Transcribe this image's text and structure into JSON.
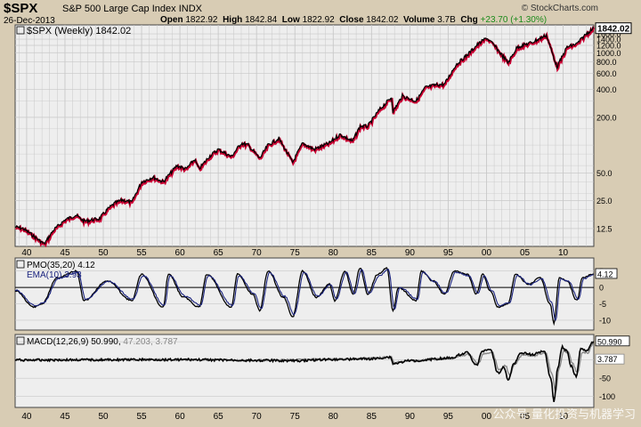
{
  "header": {
    "ticker": "$SPX",
    "name": "S&P 500 Large Cap Index",
    "exchange": "INDX",
    "date": "26-Dec-2013",
    "open_label": "Open",
    "open": "1822.92",
    "high_label": "High",
    "high": "1842.84",
    "low_label": "Low",
    "low": "1822.92",
    "close_label": "Close",
    "close": "1842.02",
    "volume_label": "Volume",
    "volume": "3.7B",
    "chg_label": "Chg",
    "chg": "+23.70 (+1.30%)",
    "brand": "© StockCharts.com",
    "watermark": "公众号·量化投资与机器学习"
  },
  "colors": {
    "background": "#d8ccb4",
    "panel": "#eeeeee",
    "grid": "#c8c8c8",
    "price_up": "#000000",
    "price_down": "#cc0033",
    "pmo": "#000000",
    "ema": "#1a237e",
    "macd": "#000000",
    "signal": "#888888"
  },
  "chart_data": [
    {
      "type": "line",
      "panel": "price",
      "legend": "$SPX (Weekly) 1842.02",
      "y_scale": "log",
      "ylim": [
        8,
        2000
      ],
      "xlim": [
        1938.5,
        2014
      ],
      "x_ticks": [
        "40",
        "45",
        "50",
        "55",
        "60",
        "65",
        "70",
        "75",
        "80",
        "85",
        "90",
        "95",
        "00",
        "05",
        "10"
      ],
      "y_ticks": [
        12.5,
        25.0,
        50.0,
        200.0,
        400.0,
        600.0,
        800.0,
        1000.0,
        1200.0,
        1400.0,
        1600.0
      ],
      "last_label": "1842.02",
      "x": [
        1938.5,
        1939.5,
        1940.5,
        1941.5,
        1942.3,
        1943.5,
        1945.0,
        1946.4,
        1947.5,
        1949.5,
        1950.5,
        1951.5,
        1952.5,
        1953.7,
        1955.0,
        1956.5,
        1957.8,
        1958.8,
        1959.6,
        1960.8,
        1961.9,
        1962.5,
        1963.8,
        1965.0,
        1966.7,
        1968.0,
        1968.9,
        1970.4,
        1971.5,
        1972.9,
        1974.7,
        1976.0,
        1977.5,
        1978.2,
        1979.5,
        1980.2,
        1980.9,
        1982.5,
        1983.5,
        1984.5,
        1986.0,
        1987.6,
        1987.8,
        1989.0,
        1990.8,
        1992.0,
        1993.5,
        1994.5,
        1996.0,
        1997.5,
        1998.7,
        2000.0,
        2001.0,
        2002.8,
        2004.0,
        2006.0,
        2007.8,
        2009.2,
        2010.5,
        2011.8,
        2013.0,
        2013.97
      ],
      "y": [
        13.0,
        12.5,
        11.0,
        9.5,
        8.5,
        12.0,
        15.5,
        17.5,
        15.0,
        16.0,
        20.0,
        23.5,
        25.5,
        24.0,
        40.0,
        45.0,
        40.0,
        50.0,
        60.0,
        55.0,
        70.0,
        55.0,
        75.0,
        90.0,
        75.0,
        105.0,
        100.0,
        72.0,
        100.0,
        118.0,
        65.0,
        105.0,
        90.0,
        95.0,
        105.0,
        118.0,
        130.0,
        110.0,
        160.0,
        160.0,
        240.0,
        330.0,
        230.0,
        340.0,
        300.0,
        420.0,
        450.0,
        455.0,
        740.0,
        950.0,
        1200.0,
        1450.0,
        1200.0,
        780.0,
        1150.0,
        1300.0,
        1550.0,
        700.0,
        1150.0,
        1250.0,
        1600.0,
        1842.02
      ]
    },
    {
      "type": "line",
      "panel": "pmo",
      "ylim": [
        -13,
        9
      ],
      "y_ticks": [
        5,
        0,
        -5,
        -10
      ],
      "series": [
        {
          "name": "PMO(35,20) 4.12",
          "last": "4.12",
          "x": [
            1938.5,
            1941.0,
            1942.0,
            1944.0,
            1946.5,
            1947.5,
            1950.5,
            1953.7,
            1955.0,
            1957.8,
            1958.5,
            1960.5,
            1962.5,
            1963.5,
            1966.7,
            1967.5,
            1969.5,
            1970.4,
            1971.5,
            1973.5,
            1974.7,
            1976.0,
            1977.8,
            1979.5,
            1980.2,
            1981.5,
            1982.6,
            1983.5,
            1984.5,
            1985.8,
            1987.0,
            1987.8,
            1988.5,
            1990.8,
            1991.5,
            1993.0,
            1994.5,
            1995.8,
            1997.5,
            1998.7,
            1999.5,
            2000.5,
            2001.5,
            2002.8,
            2003.8,
            2005.5,
            2007.0,
            2008.3,
            2008.8,
            2009.5,
            2010.5,
            2011.8,
            2012.5,
            2013.97
          ],
          "y": [
            -1.0,
            -6.0,
            -5.0,
            3.0,
            5.0,
            -4.0,
            2.0,
            -4.0,
            4.0,
            -6.0,
            4.0,
            -3.0,
            -6.0,
            4.0,
            -6.0,
            4.0,
            -2.0,
            -7.0,
            5.0,
            -3.0,
            -9.0,
            5.0,
            -3.0,
            1.0,
            -4.0,
            5.0,
            -2.0,
            6.0,
            -2.0,
            4.0,
            6.0,
            -7.0,
            0.0,
            -4.0,
            5.0,
            2.0,
            -2.0,
            5.0,
            4.0,
            -2.0,
            4.0,
            -1.0,
            -6.0,
            -5.0,
            4.0,
            1.0,
            3.0,
            -5.0,
            -11.0,
            3.0,
            2.0,
            -4.0,
            3.0,
            4.12
          ]
        },
        {
          "name": "EMA(10) 3.93",
          "last": "3.93",
          "x": [
            1938.5,
            1941.2,
            1942.2,
            1944.2,
            1946.7,
            1947.7,
            1950.7,
            1953.9,
            1955.2,
            1958.0,
            1958.7,
            1960.7,
            1962.7,
            1963.7,
            1966.9,
            1967.7,
            1969.7,
            1970.6,
            1971.7,
            1973.7,
            1974.9,
            1976.2,
            1978.0,
            1979.7,
            1980.4,
            1981.7,
            1982.8,
            1983.7,
            1984.7,
            1986.0,
            1987.2,
            1988.0,
            1988.7,
            1991.0,
            1991.7,
            1993.2,
            1994.7,
            1996.0,
            1997.7,
            1998.9,
            1999.7,
            2000.7,
            2001.7,
            2003.0,
            2004.0,
            2005.7,
            2007.2,
            2008.5,
            2009.0,
            2009.7,
            2010.7,
            2012.0,
            2012.7,
            2013.97
          ],
          "y": [
            -0.8,
            -5.5,
            -4.6,
            2.8,
            4.6,
            -3.6,
            1.8,
            -3.6,
            3.6,
            -5.5,
            3.6,
            -2.7,
            -5.5,
            3.6,
            -5.5,
            3.6,
            -1.8,
            -6.5,
            4.6,
            -2.7,
            -8.3,
            4.6,
            -2.7,
            0.9,
            -3.6,
            4.6,
            -1.8,
            5.5,
            -1.8,
            3.6,
            5.5,
            -6.5,
            0.0,
            -3.6,
            4.6,
            1.8,
            -1.8,
            4.6,
            3.6,
            -1.8,
            3.6,
            -0.9,
            -5.5,
            -4.6,
            3.6,
            0.9,
            2.7,
            -4.6,
            -10.0,
            2.7,
            1.8,
            -3.6,
            2.7,
            3.93
          ]
        }
      ]
    },
    {
      "type": "line",
      "panel": "macd",
      "ylim": [
        -130,
        70
      ],
      "y_ticks": [
        50,
        0,
        -50,
        -100
      ],
      "x_ticks": [
        "40",
        "45",
        "50",
        "55",
        "60",
        "65",
        "70",
        "75",
        "80",
        "85",
        "90",
        "95",
        "00",
        "05",
        "10"
      ],
      "series": [
        {
          "name": "MACD(12,26,9) 50.990",
          "last": "50.990",
          "x": [
            1938.5,
            1950.0,
            1960.0,
            1970.0,
            1975.0,
            1980.0,
            1985.0,
            1987.5,
            1987.8,
            1990.0,
            1995.0,
            1997.5,
            1998.7,
            1999.5,
            2000.5,
            2001.5,
            2002.3,
            2002.8,
            2003.6,
            2004.5,
            2006.0,
            2007.5,
            2008.4,
            2008.8,
            2009.3,
            2009.9,
            2010.5,
            2011.0,
            2011.7,
            2012.3,
            2013.0,
            2013.97
          ],
          "y": [
            0.0,
            0.5,
            1.0,
            -1.0,
            -2.0,
            2.0,
            3.0,
            8.0,
            -10.0,
            -2.0,
            5.0,
            20.0,
            -15.0,
            25.0,
            30.0,
            -35.0,
            -20.0,
            -55.0,
            -10.0,
            20.0,
            15.0,
            25.0,
            -50.0,
            -115.0,
            -20.0,
            35.0,
            25.0,
            -15.0,
            -45.0,
            30.0,
            25.0,
            50.99
          ]
        },
        {
          "name": "47.203",
          "last": "47.203",
          "x": [
            1938.5,
            1950.0,
            1960.0,
            1970.0,
            1980.0,
            1987.6,
            1987.9,
            1990.0,
            1995.0,
            1997.7,
            1998.9,
            1999.7,
            2000.7,
            2001.7,
            2002.5,
            2003.0,
            2003.8,
            2004.7,
            2006.2,
            2007.7,
            2008.6,
            2009.0,
            2009.5,
            2010.1,
            2010.7,
            2011.2,
            2011.9,
            2012.5,
            2013.2,
            2013.97
          ],
          "y": [
            0.0,
            0.5,
            1.0,
            -1.0,
            2.0,
            7.0,
            -7.0,
            -2.0,
            4.0,
            15.0,
            -10.0,
            18.0,
            22.0,
            -28.0,
            -15.0,
            -42.0,
            -8.0,
            15.0,
            12.0,
            20.0,
            -40.0,
            -90.0,
            -20.0,
            25.0,
            20.0,
            -10.0,
            -35.0,
            22.0,
            20.0,
            47.203
          ]
        }
      ],
      "histogram_label": "3.787"
    }
  ]
}
